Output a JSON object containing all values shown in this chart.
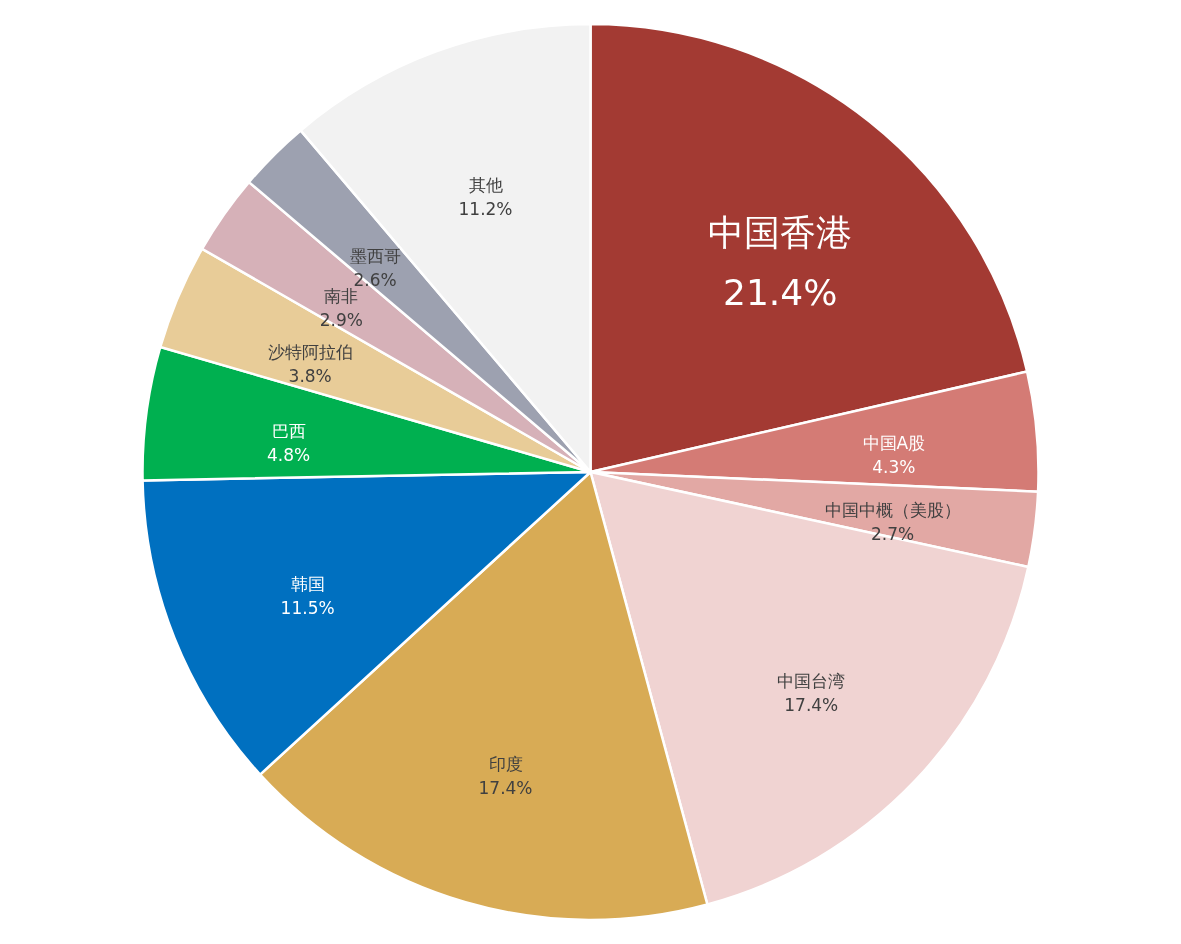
{
  "chart_data": {
    "type": "pie",
    "categories": [
      "中国香港",
      "中国A股",
      "中国中概（美股）",
      "中国台湾",
      "印度",
      "韩国",
      "巴西",
      "沙特阿拉伯",
      "南非",
      "墨西哥",
      "其他"
    ],
    "values": [
      21.4,
      4.3,
      2.7,
      17.4,
      17.4,
      11.5,
      4.8,
      3.8,
      2.9,
      2.6,
      11.2
    ],
    "value_labels": [
      "21.4%",
      "4.3%",
      "2.7%",
      "17.4%",
      "17.4%",
      "11.5%",
      "4.8%",
      "3.8%",
      "2.9%",
      "2.6%",
      "11.2%"
    ],
    "colors": [
      "#a33a33",
      "#d47b75",
      "#e2a8a4",
      "#f0d3d2",
      "#d8ab55",
      "#0070c0",
      "#00b050",
      "#e8cc98",
      "#d6b1b8",
      "#9da1b0",
      "#f2f2f2"
    ]
  }
}
